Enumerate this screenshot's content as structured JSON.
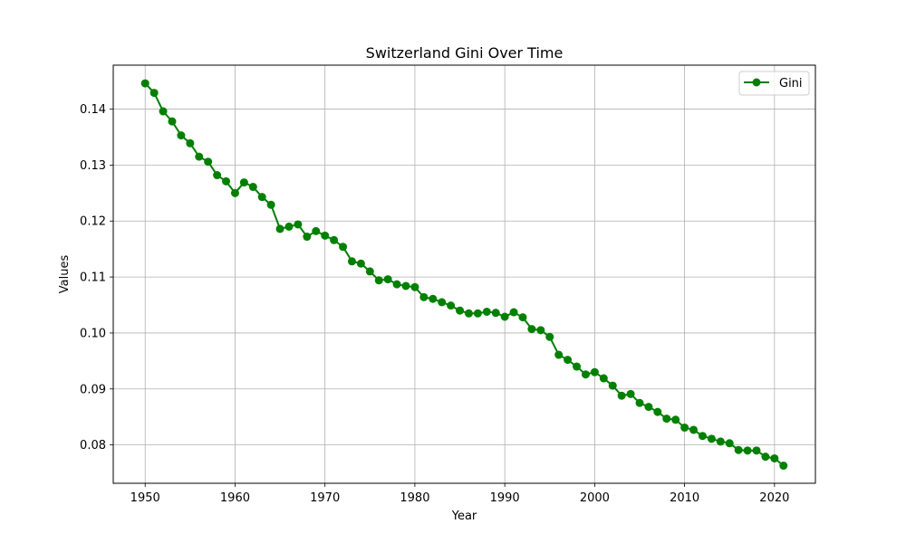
{
  "chart_data": {
    "type": "line",
    "title": "Switzerland Gini Over Time",
    "xlabel": "Year",
    "ylabel": "Values",
    "xlim": [
      1946.45,
      2024.55
    ],
    "ylim": [
      0.07315,
      0.14785
    ],
    "x_ticks": [
      1950,
      1960,
      1970,
      1980,
      1990,
      2000,
      2010,
      2020
    ],
    "x_tick_labels": [
      "1950",
      "1960",
      "1970",
      "1980",
      "1990",
      "2000",
      "2010",
      "2020"
    ],
    "y_ticks": [
      0.08,
      0.09,
      0.1,
      0.11,
      0.12,
      0.13,
      0.14
    ],
    "y_tick_labels": [
      "0.08",
      "0.09",
      "0.10",
      "0.11",
      "0.12",
      "0.13",
      "0.14"
    ],
    "grid": true,
    "legend_position": "top-right",
    "series": [
      {
        "name": "Gini",
        "color": "#008000",
        "marker": "circle",
        "x": [
          1950,
          1951,
          1952,
          1953,
          1954,
          1955,
          1956,
          1957,
          1958,
          1959,
          1960,
          1961,
          1962,
          1963,
          1964,
          1965,
          1966,
          1967,
          1968,
          1969,
          1970,
          1971,
          1972,
          1973,
          1974,
          1975,
          1976,
          1977,
          1978,
          1979,
          1980,
          1981,
          1982,
          1983,
          1984,
          1985,
          1986,
          1987,
          1988,
          1989,
          1990,
          1991,
          1992,
          1993,
          1994,
          1995,
          1996,
          1997,
          1998,
          1999,
          2000,
          2001,
          2002,
          2003,
          2004,
          2005,
          2006,
          2007,
          2008,
          2009,
          2010,
          2011,
          2012,
          2013,
          2014,
          2015,
          2016,
          2017,
          2018,
          2019,
          2020,
          2021
        ],
        "y": [
          0.1446,
          0.1429,
          0.1396,
          0.1378,
          0.1353,
          0.1339,
          0.1315,
          0.1306,
          0.1282,
          0.1271,
          0.125,
          0.1269,
          0.1261,
          0.1243,
          0.1229,
          0.1186,
          0.119,
          0.1194,
          0.1172,
          0.1182,
          0.1174,
          0.1166,
          0.1154,
          0.1128,
          0.1124,
          0.111,
          0.1094,
          0.1096,
          0.1087,
          0.1084,
          0.1082,
          0.1064,
          0.1061,
          0.1055,
          0.1049,
          0.104,
          0.1035,
          0.1035,
          0.1038,
          0.1036,
          0.1029,
          0.1037,
          0.1028,
          0.1007,
          0.1005,
          0.0993,
          0.0961,
          0.0952,
          0.094,
          0.0926,
          0.093,
          0.0919,
          0.0906,
          0.0888,
          0.0891,
          0.0875,
          0.0868,
          0.0859,
          0.0847,
          0.0845,
          0.0831,
          0.0827,
          0.0816,
          0.0811,
          0.0806,
          0.0803,
          0.0791,
          0.079,
          0.079,
          0.0779,
          0.0776,
          0.0763
        ]
      }
    ]
  }
}
